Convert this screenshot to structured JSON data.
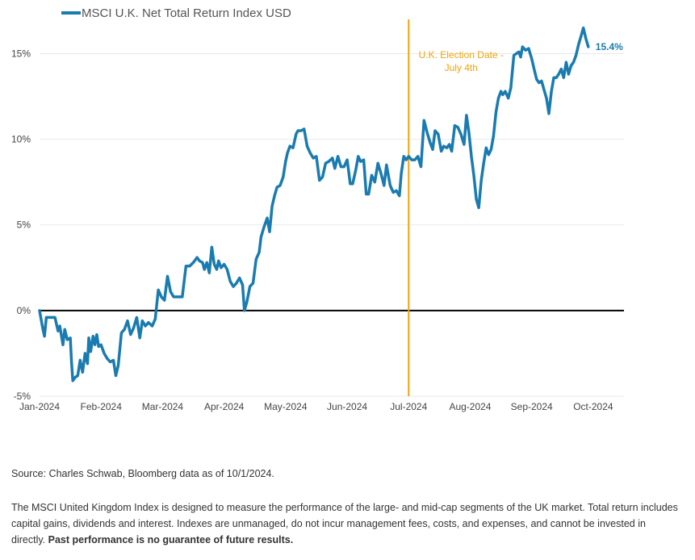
{
  "chart_data": {
    "type": "line",
    "legend": "MSCI U.K. Net Total Return Index USD",
    "x_ticks": [
      "Jan-2024",
      "Feb-2024",
      "Mar-2024",
      "Apr-2024",
      "May-2024",
      "Jun-2024",
      "Jul-2024",
      "Aug-2024",
      "Sep-2024",
      "Oct-2024"
    ],
    "y_ticks": [
      "-5%",
      "0%",
      "5%",
      "10%",
      "15%"
    ],
    "y_tick_values": [
      -5,
      0,
      5,
      10,
      15
    ],
    "ylim": [
      -5,
      17
    ],
    "xlim_months": [
      0,
      9.5
    ],
    "grid": "horizontal",
    "legend_position": "top-left",
    "colors": {
      "series": "#1a7bb0",
      "annotation": "#f0a30a",
      "zero_line": "#000000"
    },
    "annotation": {
      "line1": "U.K. Election Date -",
      "line2": "July 4th",
      "x_month": 6.0
    },
    "end_label": "15.4%",
    "series": [
      {
        "values": [
          [
            0.0,
            0.0
          ],
          [
            0.05,
            -1.0
          ],
          [
            0.08,
            -1.5
          ],
          [
            0.11,
            -0.4
          ],
          [
            0.2,
            -0.4
          ],
          [
            0.25,
            -0.4
          ],
          [
            0.3,
            -1.2
          ],
          [
            0.33,
            -0.9
          ],
          [
            0.38,
            -2.0
          ],
          [
            0.41,
            -1.1
          ],
          [
            0.45,
            -1.7
          ],
          [
            0.5,
            -1.6
          ],
          [
            0.52,
            -3.0
          ],
          [
            0.54,
            -4.1
          ],
          [
            0.58,
            -3.9
          ],
          [
            0.62,
            -3.8
          ],
          [
            0.66,
            -2.9
          ],
          [
            0.7,
            -3.6
          ],
          [
            0.74,
            -2.5
          ],
          [
            0.78,
            -3.1
          ],
          [
            0.8,
            -1.6
          ],
          [
            0.83,
            -2.4
          ],
          [
            0.87,
            -1.5
          ],
          [
            0.9,
            -2.0
          ],
          [
            0.93,
            -1.4
          ],
          [
            0.96,
            -2.1
          ],
          [
            1.0,
            -2.0
          ],
          [
            1.05,
            -2.5
          ],
          [
            1.1,
            -2.8
          ],
          [
            1.15,
            -3.0
          ],
          [
            1.2,
            -2.9
          ],
          [
            1.24,
            -3.8
          ],
          [
            1.28,
            -3.2
          ],
          [
            1.33,
            -1.3
          ],
          [
            1.38,
            -1.1
          ],
          [
            1.43,
            -0.6
          ],
          [
            1.48,
            -1.4
          ],
          [
            1.53,
            -1.0
          ],
          [
            1.58,
            -0.4
          ],
          [
            1.63,
            -1.6
          ],
          [
            1.67,
            -0.6
          ],
          [
            1.72,
            -0.9
          ],
          [
            1.77,
            -0.7
          ],
          [
            1.83,
            -0.9
          ],
          [
            1.88,
            -0.5
          ],
          [
            1.93,
            1.2
          ],
          [
            1.98,
            0.8
          ],
          [
            2.03,
            0.6
          ],
          [
            2.08,
            2.0
          ],
          [
            2.13,
            1.1
          ],
          [
            2.18,
            0.8
          ],
          [
            2.25,
            0.8
          ],
          [
            2.32,
            0.8
          ],
          [
            2.38,
            2.6
          ],
          [
            2.44,
            2.6
          ],
          [
            2.5,
            2.8
          ],
          [
            2.56,
            3.1
          ],
          [
            2.6,
            2.9
          ],
          [
            2.65,
            2.8
          ],
          [
            2.68,
            2.4
          ],
          [
            2.72,
            2.8
          ],
          [
            2.76,
            2.2
          ],
          [
            2.8,
            3.7
          ],
          [
            2.84,
            2.7
          ],
          [
            2.88,
            2.4
          ],
          [
            2.91,
            2.9
          ],
          [
            2.95,
            2.5
          ],
          [
            3.0,
            2.7
          ],
          [
            3.05,
            2.4
          ],
          [
            3.1,
            1.7
          ],
          [
            3.15,
            1.4
          ],
          [
            3.2,
            1.6
          ],
          [
            3.25,
            1.9
          ],
          [
            3.3,
            1.5
          ],
          [
            3.33,
            0.0
          ],
          [
            3.37,
            0.5
          ],
          [
            3.42,
            1.4
          ],
          [
            3.47,
            1.6
          ],
          [
            3.52,
            3.0
          ],
          [
            3.57,
            3.4
          ],
          [
            3.6,
            4.3
          ],
          [
            3.65,
            4.9
          ],
          [
            3.7,
            5.4
          ],
          [
            3.74,
            4.6
          ],
          [
            3.78,
            6.1
          ],
          [
            3.82,
            6.7
          ],
          [
            3.86,
            7.2
          ],
          [
            3.91,
            7.3
          ],
          [
            3.96,
            7.8
          ],
          [
            4.0,
            8.7
          ],
          [
            4.03,
            9.2
          ],
          [
            4.07,
            9.6
          ],
          [
            4.12,
            9.5
          ],
          [
            4.17,
            10.3
          ],
          [
            4.2,
            10.5
          ],
          [
            4.25,
            10.5
          ],
          [
            4.3,
            10.6
          ],
          [
            4.35,
            9.6
          ],
          [
            4.4,
            9.2
          ],
          [
            4.45,
            8.9
          ],
          [
            4.5,
            9.0
          ],
          [
            4.55,
            7.6
          ],
          [
            4.6,
            7.8
          ],
          [
            4.65,
            8.6
          ],
          [
            4.7,
            8.7
          ],
          [
            4.76,
            8.9
          ],
          [
            4.8,
            8.3
          ],
          [
            4.85,
            9.0
          ],
          [
            4.9,
            8.4
          ],
          [
            4.95,
            8.4
          ],
          [
            5.0,
            8.8
          ],
          [
            5.05,
            7.4
          ],
          [
            5.09,
            7.4
          ],
          [
            5.14,
            8.2
          ],
          [
            5.18,
            9.0
          ],
          [
            5.22,
            8.7
          ],
          [
            5.27,
            8.8
          ],
          [
            5.31,
            6.8
          ],
          [
            5.35,
            6.8
          ],
          [
            5.4,
            7.9
          ],
          [
            5.45,
            7.5
          ],
          [
            5.5,
            8.6
          ],
          [
            5.55,
            8.0
          ],
          [
            5.6,
            7.3
          ],
          [
            5.64,
            8.5
          ],
          [
            5.7,
            7.3
          ],
          [
            5.75,
            6.9
          ],
          [
            5.8,
            7.0
          ],
          [
            5.85,
            6.7
          ],
          [
            5.88,
            8.0
          ],
          [
            5.92,
            9.0
          ],
          [
            5.96,
            8.8
          ],
          [
            6.0,
            9.0
          ],
          [
            6.05,
            8.8
          ],
          [
            6.1,
            8.8
          ],
          [
            6.15,
            9.0
          ],
          [
            6.2,
            8.4
          ],
          [
            6.25,
            11.1
          ],
          [
            6.3,
            10.4
          ],
          [
            6.35,
            9.8
          ],
          [
            6.39,
            9.4
          ],
          [
            6.43,
            10.5
          ],
          [
            6.48,
            10.3
          ],
          [
            6.53,
            9.3
          ],
          [
            6.57,
            9.6
          ],
          [
            6.62,
            9.5
          ],
          [
            6.66,
            9.7
          ],
          [
            6.7,
            9.3
          ],
          [
            6.75,
            10.8
          ],
          [
            6.8,
            10.7
          ],
          [
            6.85,
            10.3
          ],
          [
            6.9,
            9.7
          ],
          [
            6.94,
            11.4
          ],
          [
            6.98,
            10.4
          ],
          [
            7.02,
            9.0
          ],
          [
            7.06,
            7.9
          ],
          [
            7.1,
            6.5
          ],
          [
            7.14,
            6.0
          ],
          [
            7.18,
            7.6
          ],
          [
            7.22,
            8.6
          ],
          [
            7.26,
            9.5
          ],
          [
            7.3,
            9.1
          ],
          [
            7.34,
            9.4
          ],
          [
            7.38,
            10.2
          ],
          [
            7.42,
            11.6
          ],
          [
            7.46,
            12.4
          ],
          [
            7.5,
            12.8
          ],
          [
            7.53,
            12.6
          ],
          [
            7.57,
            12.8
          ],
          [
            7.62,
            12.4
          ],
          [
            7.66,
            13.0
          ],
          [
            7.71,
            14.9
          ],
          [
            7.75,
            15.0
          ],
          [
            7.79,
            15.1
          ],
          [
            7.82,
            14.8
          ],
          [
            7.85,
            15.4
          ],
          [
            7.9,
            15.2
          ],
          [
            7.95,
            15.3
          ],
          [
            8.0,
            14.7
          ],
          [
            8.04,
            14.1
          ],
          [
            8.08,
            13.5
          ],
          [
            8.12,
            13.3
          ],
          [
            8.16,
            13.4
          ],
          [
            8.2,
            12.9
          ],
          [
            8.24,
            12.4
          ],
          [
            8.28,
            11.5
          ],
          [
            8.32,
            12.8
          ],
          [
            8.36,
            13.6
          ],
          [
            8.4,
            13.6
          ],
          [
            8.44,
            13.8
          ],
          [
            8.48,
            14.1
          ],
          [
            8.52,
            13.6
          ],
          [
            8.56,
            14.5
          ],
          [
            8.6,
            13.8
          ],
          [
            8.64,
            14.3
          ],
          [
            8.68,
            14.5
          ],
          [
            8.72,
            14.9
          ],
          [
            8.76,
            15.5
          ],
          [
            8.8,
            16.0
          ],
          [
            8.84,
            16.5
          ],
          [
            8.88,
            15.9
          ],
          [
            8.92,
            15.4
          ]
        ]
      }
    ]
  },
  "footer": {
    "source": "Source: Charles Schwab, Bloomberg data as of 10/1/2024.",
    "description": "The MSCI United Kingdom Index is designed to measure the performance of the large- and mid-cap segments of the UK market. Total return includes capital gains, dividends and interest. Indexes are unmanaged, do not incur management fees, costs, and expenses, and cannot be invested in directly.",
    "disclaimer": "Past performance is no guarantee of future results."
  }
}
